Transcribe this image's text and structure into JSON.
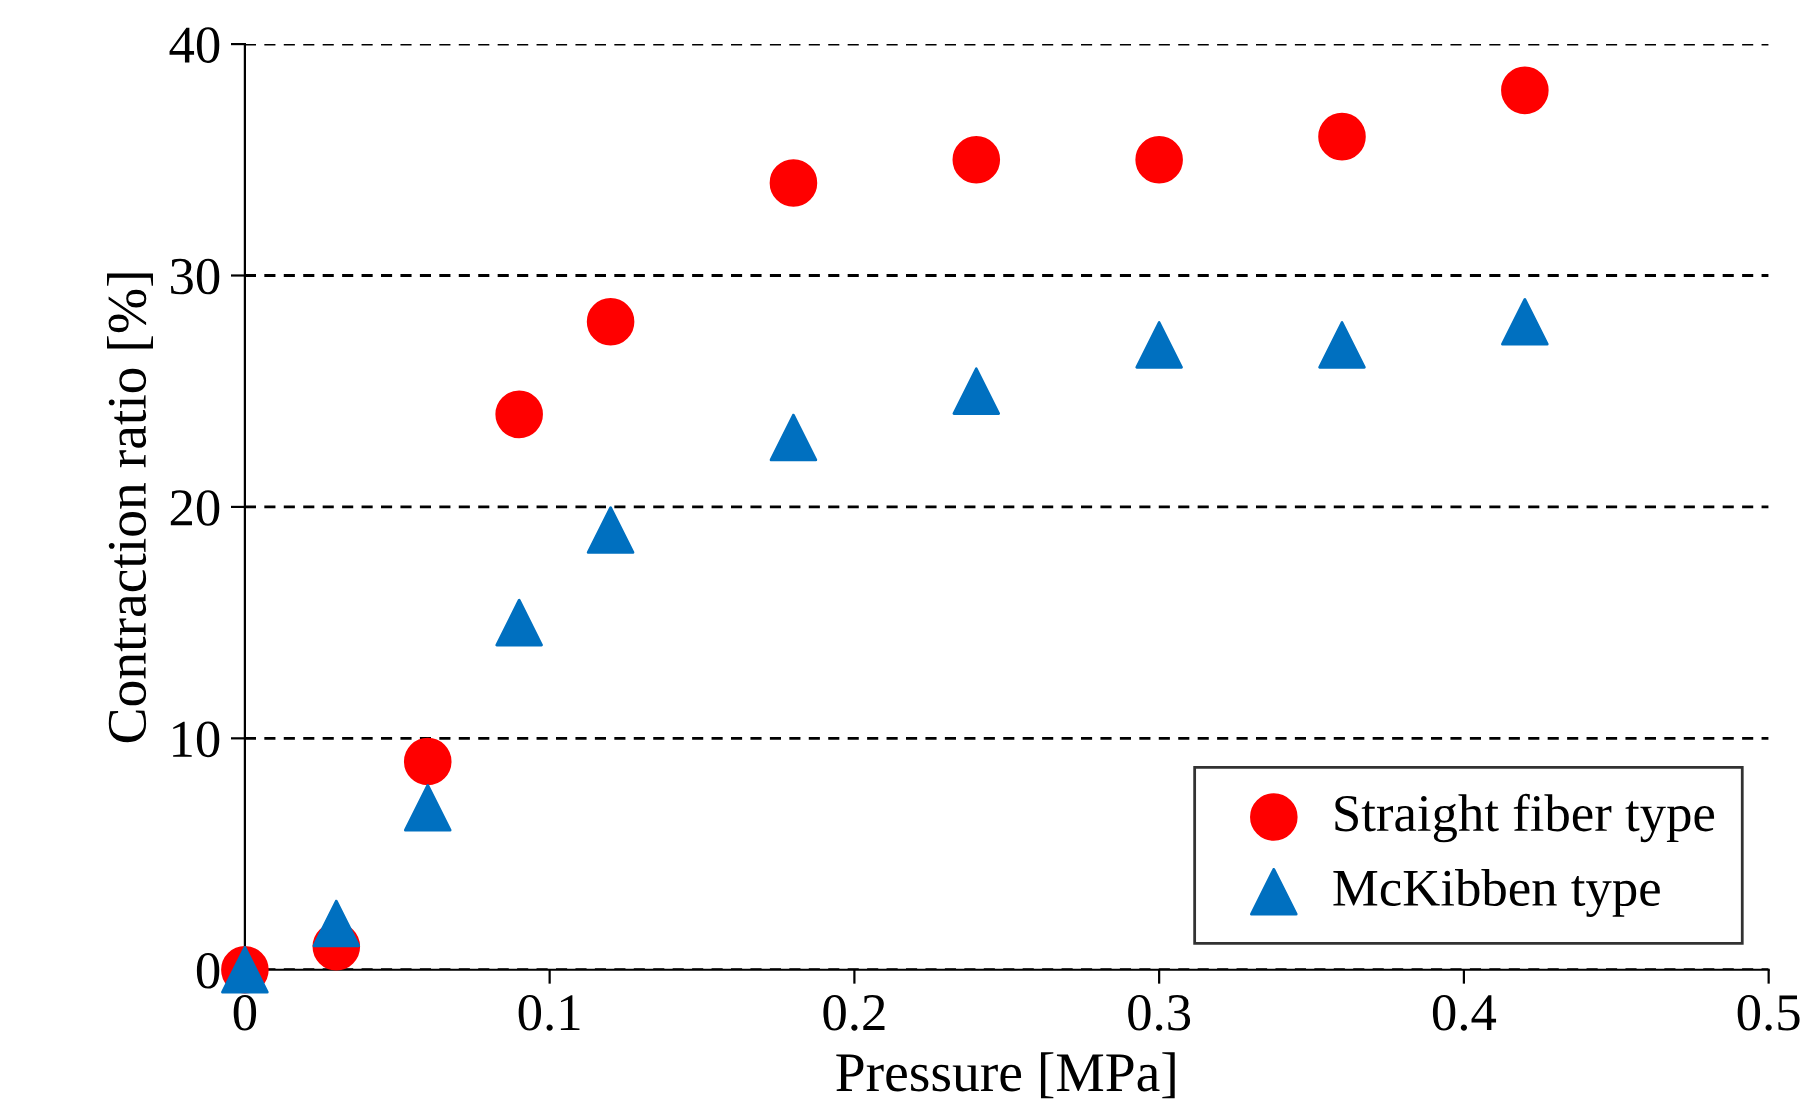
{
  "chart_data": {
    "type": "scatter",
    "xlabel": "Pressure [MPa]",
    "ylabel": "Contraction ratio [%]",
    "x": [
      0,
      0.03,
      0.06,
      0.09,
      0.12,
      0.18,
      0.24,
      0.3,
      0.36,
      0.42
    ],
    "series": [
      {
        "name": "Straight fiber type",
        "color": "#ff0000",
        "marker": "circle",
        "values": [
          0,
          1,
          9,
          24,
          28,
          34,
          35,
          35,
          36,
          38
        ]
      },
      {
        "name": "McKibben type",
        "color": "#0070c0",
        "marker": "triangle",
        "values": [
          0,
          2,
          7,
          15,
          19,
          23,
          25,
          27,
          27,
          28
        ]
      }
    ],
    "xlim": [
      0,
      0.5
    ],
    "xticks": [
      0,
      0.1,
      0.2,
      0.3,
      0.4,
      0.5
    ],
    "ylim": [
      0,
      40
    ],
    "yticks": [
      0,
      10,
      20,
      30,
      40
    ],
    "grid": "y",
    "legend": "bottom right"
  }
}
